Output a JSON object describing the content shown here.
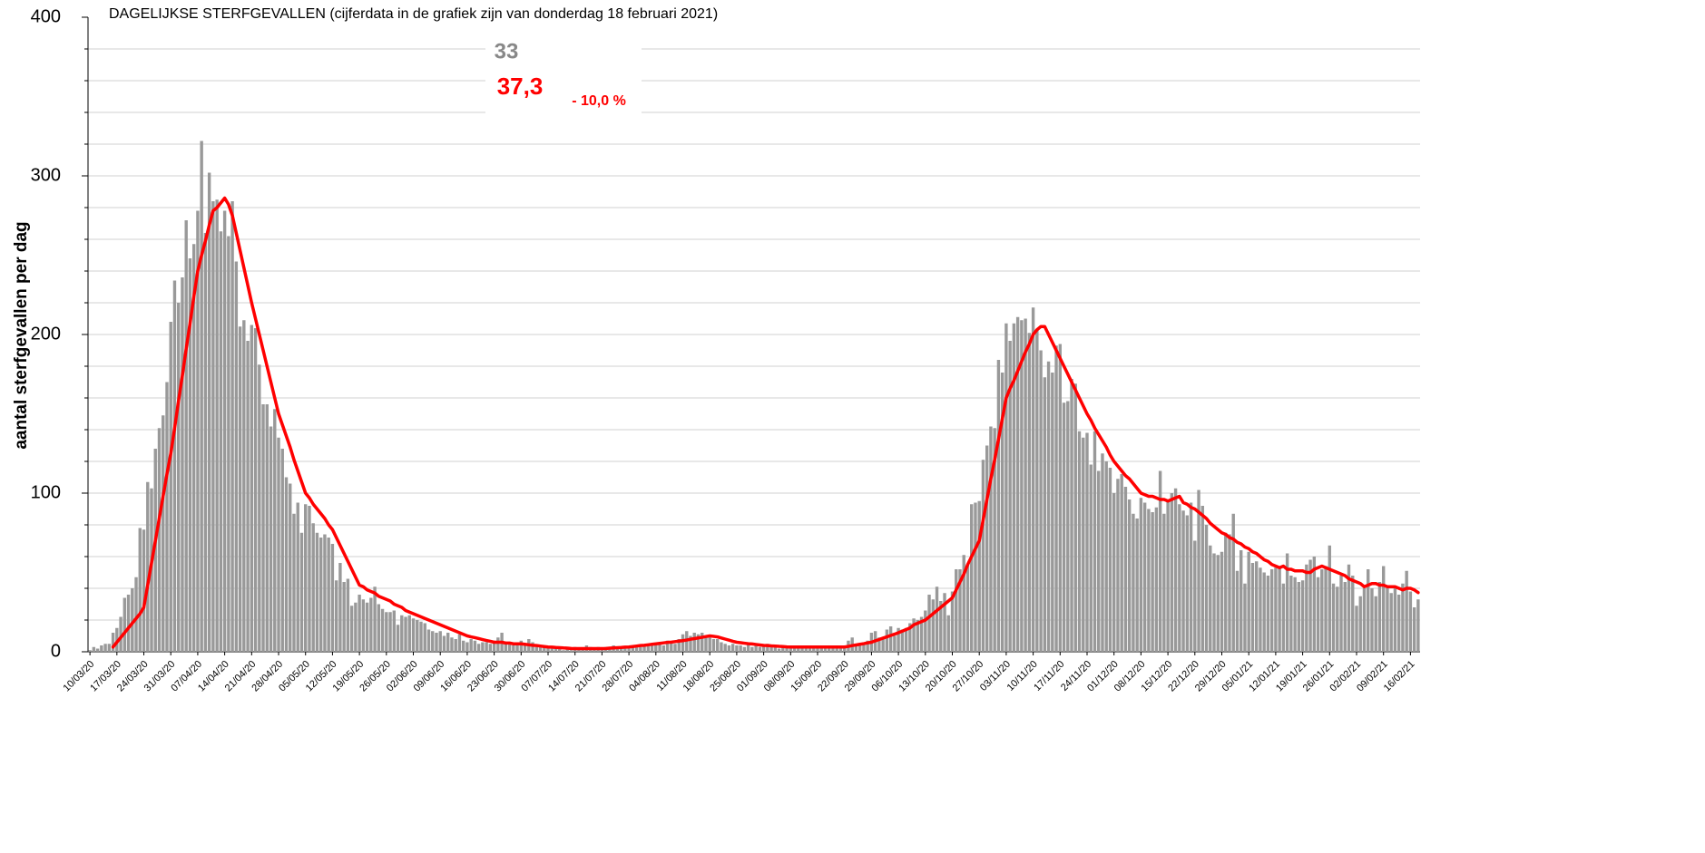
{
  "chart_data": {
    "type": "bar",
    "title": "DAGELIJKSE STERFGEVALLEN (cijferdata in de grafiek zijn van donderdag 18 februari 2021)",
    "y_label": "aantal sterfgevallen per dag",
    "annotations": [
      "33",
      "37,3",
      "- 10,0 %"
    ],
    "ylim": [
      0,
      400
    ],
    "yticks": [
      0,
      100,
      200,
      300,
      400
    ],
    "grid_lines": [
      20,
      40,
      60,
      80,
      100,
      120,
      140,
      160,
      180,
      200,
      220,
      240,
      260,
      280,
      300,
      320,
      340,
      360,
      380
    ],
    "grid": true,
    "categories": [
      "10/03/20",
      null,
      null,
      null,
      null,
      null,
      null,
      "17/03/20",
      null,
      null,
      null,
      null,
      null,
      null,
      "24/03/20",
      null,
      null,
      null,
      null,
      null,
      null,
      "31/03/20",
      null,
      null,
      null,
      null,
      null,
      null,
      "07/04/20",
      null,
      null,
      null,
      null,
      null,
      null,
      "14/04/20",
      null,
      null,
      null,
      null,
      null,
      null,
      "21/04/20",
      null,
      null,
      null,
      null,
      null,
      null,
      "28/04/20",
      null,
      null,
      null,
      null,
      null,
      null,
      "05/05/20",
      null,
      null,
      null,
      null,
      null,
      null,
      "12/05/20",
      null,
      null,
      null,
      null,
      null,
      null,
      "19/05/20",
      null,
      null,
      null,
      null,
      null,
      null,
      "26/05/20",
      null,
      null,
      null,
      null,
      null,
      null,
      "02/06/20",
      null,
      null,
      null,
      null,
      null,
      null,
      "09/06/20",
      null,
      null,
      null,
      null,
      null,
      null,
      "16/06/20",
      null,
      null,
      null,
      null,
      null,
      null,
      "23/06/20",
      null,
      null,
      null,
      null,
      null,
      null,
      "30/06/20",
      null,
      null,
      null,
      null,
      null,
      null,
      "07/07/20",
      null,
      null,
      null,
      null,
      null,
      null,
      "14/07/20",
      null,
      null,
      null,
      null,
      null,
      null,
      "21/07/20",
      null,
      null,
      null,
      null,
      null,
      null,
      "28/07/20",
      null,
      null,
      null,
      null,
      null,
      null,
      "04/08/20",
      null,
      null,
      null,
      null,
      null,
      null,
      "11/08/20",
      null,
      null,
      null,
      null,
      null,
      null,
      "18/08/20",
      null,
      null,
      null,
      null,
      null,
      null,
      "25/08/20",
      null,
      null,
      null,
      null,
      null,
      null,
      "01/09/20",
      null,
      null,
      null,
      null,
      null,
      null,
      "08/09/20",
      null,
      null,
      null,
      null,
      null,
      null,
      "15/09/20",
      null,
      null,
      null,
      null,
      null,
      null,
      "22/09/20",
      null,
      null,
      null,
      null,
      null,
      null,
      "29/09/20",
      null,
      null,
      null,
      null,
      null,
      null,
      "06/10/20",
      null,
      null,
      null,
      null,
      null,
      null,
      "13/10/20",
      null,
      null,
      null,
      null,
      null,
      null,
      "20/10/20",
      null,
      null,
      null,
      null,
      null,
      null,
      "27/10/20",
      null,
      null,
      null,
      null,
      null,
      null,
      "03/11/20",
      null,
      null,
      null,
      null,
      null,
      null,
      "10/11/20",
      null,
      null,
      null,
      null,
      null,
      null,
      "17/11/20",
      null,
      null,
      null,
      null,
      null,
      null,
      "24/11/20",
      null,
      null,
      null,
      null,
      null,
      null,
      "01/12/20",
      null,
      null,
      null,
      null,
      null,
      null,
      "08/12/20",
      null,
      null,
      null,
      null,
      null,
      null,
      "15/12/20",
      null,
      null,
      null,
      null,
      null,
      null,
      "22/12/20",
      null,
      null,
      null,
      null,
      null,
      null,
      "29/12/20",
      null,
      null,
      null,
      null,
      null,
      null,
      "05/01/21",
      null,
      null,
      null,
      null,
      null,
      null,
      "12/01/21",
      null,
      null,
      null,
      null,
      null,
      null,
      "19/01/21",
      null,
      null,
      null,
      null,
      null,
      null,
      "26/01/21",
      null,
      null,
      null,
      null,
      null,
      null,
      "02/02/21",
      null,
      null,
      null,
      null,
      null,
      null,
      "09/02/21",
      null,
      null,
      null,
      null,
      null,
      null,
      "16/02/21",
      null,
      null
    ],
    "series": [
      {
        "type": "bar",
        "color": "#999999",
        "values": [
          1,
          3,
          2,
          4,
          5,
          5,
          12,
          15,
          22,
          34,
          36,
          40,
          47,
          78,
          77,
          107,
          103,
          128,
          141,
          149,
          170,
          208,
          234,
          220,
          236,
          272,
          248,
          257,
          278,
          322,
          264,
          302,
          284,
          285,
          265,
          278,
          262,
          284,
          246,
          205,
          209,
          196,
          206,
          204,
          181,
          156,
          156,
          142,
          153,
          135,
          128,
          110,
          106,
          87,
          94,
          75,
          93,
          92,
          81,
          75,
          72,
          74,
          72,
          68,
          45,
          56,
          44,
          46,
          29,
          31,
          36,
          33,
          31,
          34,
          41,
          30,
          27,
          25,
          25,
          26,
          17,
          23,
          22,
          23,
          21,
          20,
          19,
          18,
          14,
          13,
          12,
          13,
          10,
          12,
          9,
          8,
          11,
          7,
          6,
          8,
          7,
          5,
          6,
          6,
          5,
          7,
          9,
          12,
          6,
          5,
          4,
          5,
          7,
          4,
          8,
          6,
          3,
          3,
          4,
          3,
          2,
          2,
          2,
          1,
          2,
          1,
          3,
          2,
          2,
          4,
          3,
          2,
          3,
          2,
          3,
          2,
          4,
          2,
          2,
          3,
          2,
          4,
          3,
          3,
          4,
          5,
          5,
          5,
          6,
          4,
          7,
          6,
          5,
          8,
          11,
          13,
          10,
          12,
          11,
          12,
          10,
          9,
          8,
          8,
          6,
          5,
          4,
          5,
          4,
          4,
          3,
          5,
          3,
          4,
          3,
          4,
          5,
          3,
          3,
          2,
          3,
          3,
          2,
          3,
          3,
          3,
          4,
          2,
          3,
          3,
          2,
          4,
          3,
          2,
          2,
          3,
          4,
          7,
          9,
          4,
          5,
          6,
          7,
          12,
          13,
          9,
          8,
          14,
          16,
          10,
          15,
          14,
          15,
          18,
          21,
          20,
          22,
          26,
          36,
          33,
          41,
          32,
          37,
          23,
          38,
          52,
          52,
          61,
          55,
          93,
          94,
          95,
          121,
          130,
          142,
          141,
          184,
          176,
          207,
          196,
          207,
          211,
          209,
          210,
          201,
          217,
          203,
          190,
          173,
          183,
          176,
          193,
          194,
          157,
          158,
          172,
          169,
          139,
          135,
          138,
          118,
          139,
          114,
          125,
          120,
          116,
          100,
          109,
          112,
          104,
          96,
          87,
          84,
          97,
          94,
          90,
          88,
          91,
          114,
          87,
          96,
          100,
          103,
          93,
          89,
          86,
          94,
          70,
          102,
          92,
          80,
          67,
          62,
          61,
          63,
          75,
          74,
          87,
          51,
          64,
          43,
          63,
          56,
          57,
          53,
          50,
          48,
          52,
          53,
          54,
          43,
          62,
          48,
          47,
          44,
          45,
          55,
          58,
          60,
          47,
          52,
          54,
          67,
          43,
          41,
          48,
          44,
          55,
          48,
          29,
          35,
          40,
          52,
          40,
          35,
          44,
          54,
          40,
          37,
          41,
          36,
          43,
          51,
          38,
          28,
          33
        ]
      },
      {
        "type": "line",
        "color": "#ff0000",
        "values": [
          null,
          null,
          null,
          null,
          null,
          null,
          3,
          6,
          9,
          12,
          15,
          18,
          21,
          24,
          28,
          42,
          56,
          70,
          84,
          98,
          112,
          125,
          141,
          158,
          174,
          191,
          207,
          224,
          240,
          250,
          259,
          269,
          278,
          280,
          283,
          286,
          282,
          275,
          264,
          253,
          242,
          231,
          220,
          210,
          200,
          190,
          180,
          170,
          160,
          150,
          143,
          136,
          129,
          121,
          114,
          107,
          100,
          97,
          93,
          90,
          87,
          84,
          80,
          77,
          72,
          67,
          62,
          57,
          52,
          47,
          42,
          41,
          39,
          38,
          37,
          35,
          34,
          33,
          32,
          30,
          29,
          28,
          26,
          25,
          24,
          23,
          22,
          21,
          20,
          19,
          18,
          17,
          16,
          15,
          14,
          13,
          12,
          11,
          10,
          9.4,
          8.9,
          8.3,
          7.7,
          7.1,
          6.6,
          6,
          6,
          6,
          5.5,
          5.5,
          5,
          5,
          5,
          4.7,
          4.4,
          4.1,
          3.9,
          3.6,
          3.3,
          3,
          2.9,
          2.7,
          2.6,
          2.4,
          2.3,
          2.1,
          2,
          2,
          2,
          2,
          2,
          2,
          2,
          2,
          2.1,
          2.3,
          2.4,
          2.6,
          2.7,
          2.9,
          3,
          3.3,
          3.6,
          3.9,
          4.1,
          4.4,
          4.7,
          5,
          5.3,
          5.6,
          5.9,
          6.1,
          6.4,
          6.7,
          7,
          7.4,
          7.9,
          8.3,
          8.7,
          9.1,
          9.6,
          10,
          9.7,
          9.4,
          8.7,
          8,
          7.3,
          6.6,
          6,
          5.7,
          5.4,
          5.1,
          4.9,
          4.6,
          4.3,
          4,
          3.9,
          3.7,
          3.6,
          3.4,
          3.3,
          3.1,
          3,
          3,
          3,
          3,
          3,
          3,
          3,
          3,
          3,
          3,
          3,
          3,
          3,
          3,
          3,
          3.4,
          3.9,
          4.3,
          4.7,
          5.1,
          5.6,
          6,
          6.9,
          7.7,
          8.6,
          9.4,
          10.3,
          11.1,
          12,
          13,
          14,
          15,
          17,
          18,
          19,
          20,
          22,
          24,
          26,
          28,
          30,
          32,
          34,
          39,
          44,
          49,
          55,
          60,
          65,
          70,
          83,
          96,
          109,
          121,
          134,
          147,
          160,
          166,
          171,
          177,
          183,
          189,
          194,
          200,
          203,
          205,
          205,
          200,
          195,
          190,
          185,
          180,
          175,
          170,
          165,
          160,
          155,
          150,
          146,
          141,
          137,
          133,
          129,
          124,
          120,
          117,
          114,
          111,
          109,
          106,
          103,
          100,
          99,
          98,
          98,
          97,
          96,
          96,
          95,
          96,
          97,
          98,
          94,
          93,
          91,
          90,
          88,
          86,
          84,
          81,
          79,
          77,
          75,
          74,
          72,
          71,
          69,
          68,
          66,
          65,
          63,
          62,
          60,
          58,
          57,
          55,
          54,
          53,
          54,
          52,
          52,
          51,
          51,
          51,
          50,
          50,
          52,
          53,
          54,
          53,
          52,
          51,
          50,
          49,
          48,
          46,
          45,
          44,
          43,
          41,
          42,
          43,
          43,
          42,
          42,
          41,
          41,
          41,
          40,
          39,
          40,
          40,
          39,
          37.3
        ]
      }
    ]
  }
}
